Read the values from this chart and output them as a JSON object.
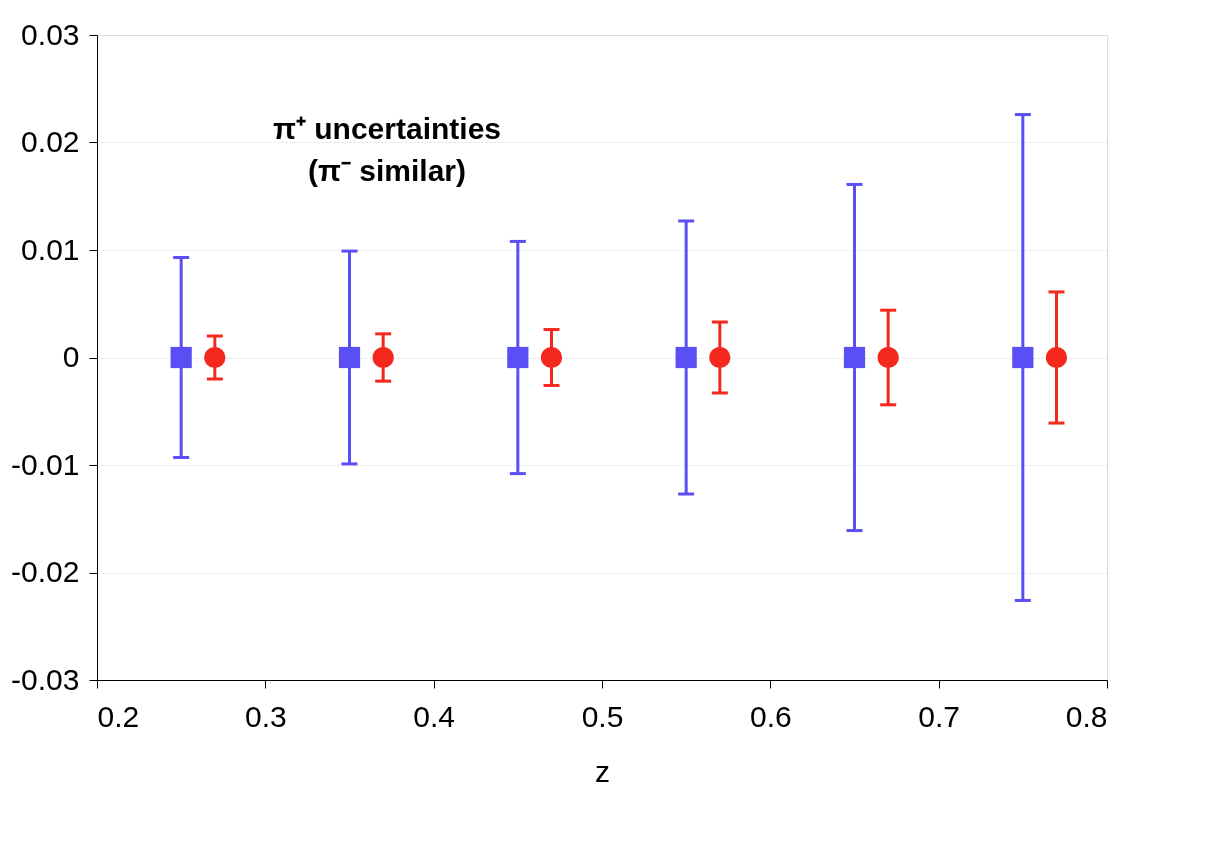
{
  "chart_data": {
    "type": "scatter",
    "xlabel": "z",
    "annotations": [
      "π⁺ uncertainties",
      "(π⁻ similar)"
    ],
    "xlim": [
      0.2,
      0.8
    ],
    "xticks": [
      0.2,
      0.3,
      0.4,
      0.5,
      0.6,
      0.7,
      0.8
    ],
    "ylim": [
      -0.03,
      0.03
    ],
    "yticks": [
      -0.03,
      -0.02,
      -0.01,
      0,
      0.01,
      0.02,
      0.03
    ],
    "grid": "y",
    "series": [
      {
        "color": "#5a4ff5",
        "marker": "square",
        "x": [
          0.25,
          0.35,
          0.45,
          0.55,
          0.65,
          0.75
        ],
        "values": [
          0,
          0,
          0,
          0,
          0,
          0
        ],
        "errors": [
          0.0093,
          0.0099,
          0.0108,
          0.0127,
          0.0161,
          0.0226
        ]
      },
      {
        "color": "#f5281e",
        "marker": "circle",
        "x": [
          0.27,
          0.37,
          0.47,
          0.57,
          0.67,
          0.77
        ],
        "values": [
          0,
          0,
          0,
          0,
          0,
          0
        ],
        "errors": [
          0.002,
          0.0022,
          0.0026,
          0.0033,
          0.0044,
          0.0061
        ]
      }
    ]
  }
}
